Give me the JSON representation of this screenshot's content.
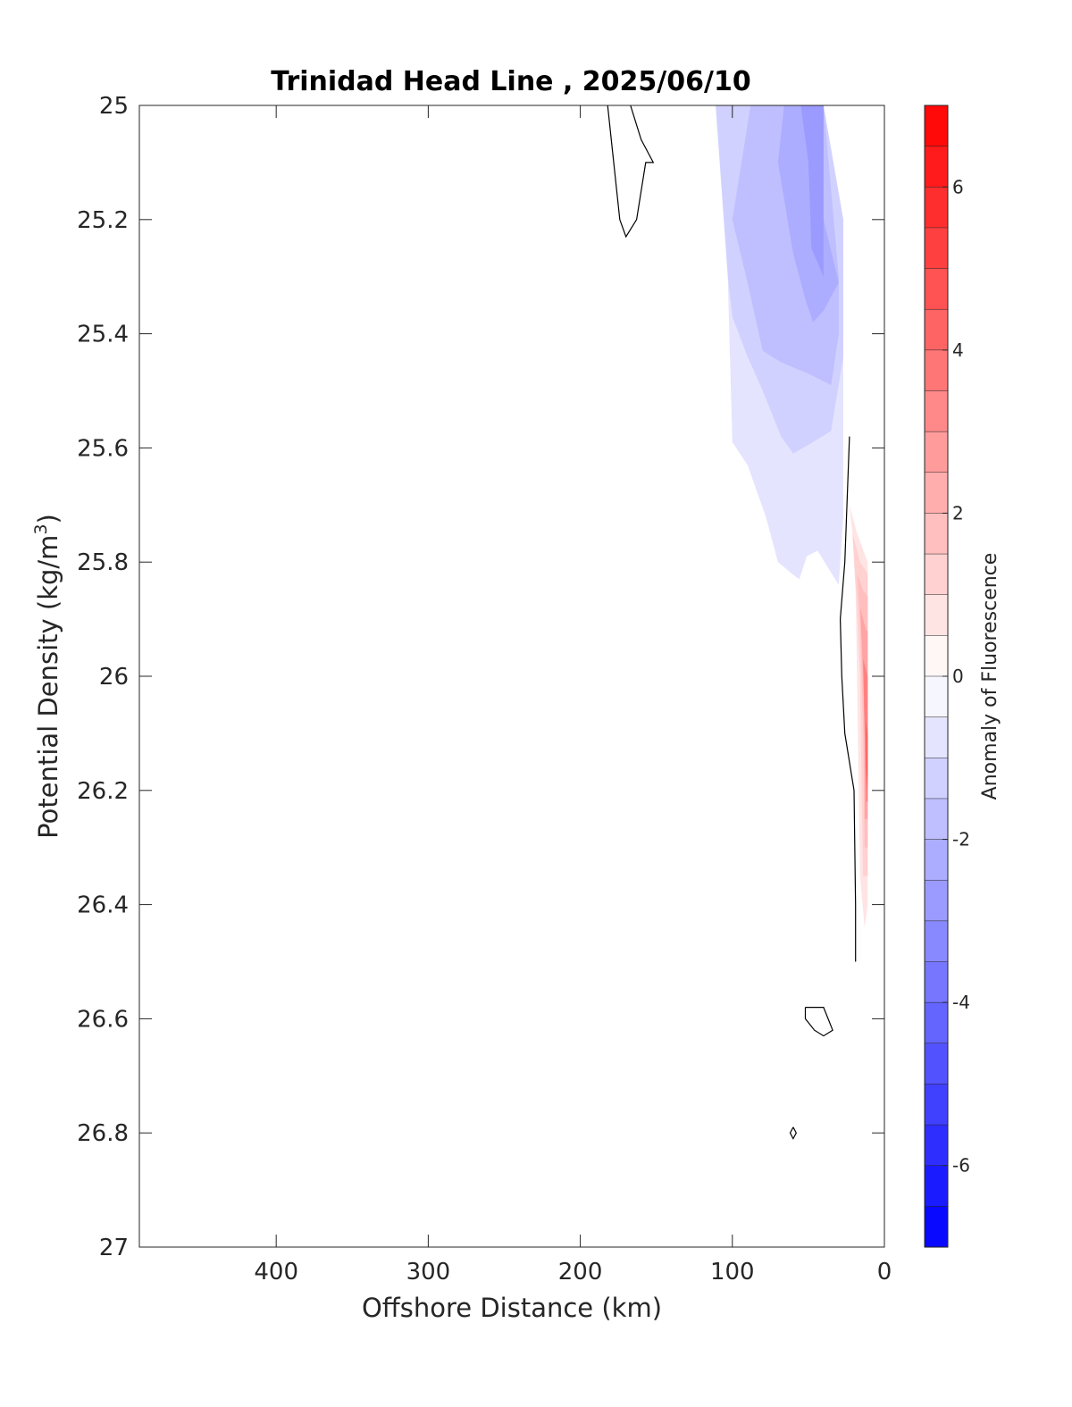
{
  "chart_data": {
    "type": "contour",
    "title": "Trinidad Head Line , 2025/06/10",
    "xlabel": "Offshore Distance (km)",
    "ylabel": "Potential Density (kg/m",
    "ylabel_sup": "3",
    "ylabel_close": ")",
    "xlim": [
      490,
      0
    ],
    "ylim": [
      25,
      27
    ],
    "x_reversed": true,
    "y_reversed": true,
    "xticks": [
      400,
      300,
      200,
      100,
      0
    ],
    "xtick_labels": [
      "400",
      "300",
      "200",
      "100",
      "0"
    ],
    "yticks": [
      25,
      25.2,
      25.4,
      25.6,
      25.8,
      26,
      26.2,
      26.4,
      26.6,
      26.8,
      27
    ],
    "ytick_labels": [
      "25",
      "25.2",
      "25.4",
      "25.6",
      "25.8",
      "26",
      "26.2",
      "26.4",
      "26.6",
      "26.8",
      "27"
    ],
    "grid": false,
    "colorbar": {
      "label": "Anomaly of Fluorescence",
      "range": [
        -7,
        7
      ],
      "levels": 28,
      "ticks": [
        6,
        4,
        2,
        0,
        -2,
        -4,
        -6
      ],
      "tick_labels": [
        "6",
        "4",
        "2",
        "0",
        "-2",
        "-4",
        "-6"
      ],
      "color_low": "#0000ff",
      "color_mid": "#ffffff",
      "color_high": "#ff0000"
    },
    "filled_regions": [
      {
        "level": -0.75,
        "points": [
          [
            128,
            25
          ],
          [
            106,
            25
          ],
          [
            102,
            25.4
          ],
          [
            100,
            25.59
          ],
          [
            90,
            25.63
          ],
          [
            78,
            25.72
          ],
          [
            70,
            25.8
          ],
          [
            61,
            25.82
          ],
          [
            56,
            25.83
          ],
          [
            51,
            25.79
          ],
          [
            44,
            25.78
          ],
          [
            30,
            25.84
          ],
          [
            27,
            25.72
          ],
          [
            27,
            25.25
          ],
          [
            40,
            25
          ],
          [
            128,
            25
          ]
        ]
      },
      {
        "level": -1.25,
        "points": [
          [
            111,
            25
          ],
          [
            103,
            25.3
          ],
          [
            100,
            25.37
          ],
          [
            90,
            25.44
          ],
          [
            80,
            25.5
          ],
          [
            68,
            25.58
          ],
          [
            60,
            25.61
          ],
          [
            47,
            25.59
          ],
          [
            35,
            25.57
          ],
          [
            27,
            25.44
          ],
          [
            27,
            25.2
          ],
          [
            40,
            25
          ],
          [
            111,
            25
          ]
        ]
      },
      {
        "level": -1.75,
        "points": [
          [
            88,
            25
          ],
          [
            100,
            25.2
          ],
          [
            90,
            25.31
          ],
          [
            80,
            25.43
          ],
          [
            68,
            25.45
          ],
          [
            50,
            25.47
          ],
          [
            35,
            25.49
          ],
          [
            30,
            25.4
          ],
          [
            30,
            25.3
          ],
          [
            40,
            25
          ],
          [
            88,
            25
          ]
        ]
      },
      {
        "level": -2.25,
        "points": [
          [
            66,
            25
          ],
          [
            70,
            25.1
          ],
          [
            60,
            25.26
          ],
          [
            52,
            25.34
          ],
          [
            47,
            25.38
          ],
          [
            40,
            25.36
          ],
          [
            30,
            25.31
          ],
          [
            40,
            25.2
          ],
          [
            40,
            25
          ],
          [
            66,
            25
          ]
        ]
      },
      {
        "level": -2.75,
        "points": [
          [
            55,
            25
          ],
          [
            50,
            25.1
          ],
          [
            48,
            25.25
          ],
          [
            40,
            25.3
          ],
          [
            40,
            25
          ],
          [
            55,
            25
          ]
        ]
      },
      {
        "level": 0.75,
        "points": [
          [
            23,
            25.7
          ],
          [
            18,
            25.75
          ],
          [
            11,
            25.8
          ],
          [
            11,
            26.4
          ],
          [
            13,
            26.44
          ],
          [
            16,
            26.35
          ],
          [
            17,
            26.2
          ],
          [
            18,
            26
          ],
          [
            19,
            25.85
          ],
          [
            21,
            25.75
          ],
          [
            23,
            25.7
          ]
        ]
      },
      {
        "level": 1.25,
        "points": [
          [
            21,
            25.75
          ],
          [
            16,
            25.8
          ],
          [
            11,
            25.82
          ],
          [
            11,
            26.35
          ],
          [
            14,
            26.35
          ],
          [
            15,
            26.2
          ],
          [
            16,
            26
          ],
          [
            18,
            25.88
          ],
          [
            21,
            25.75
          ]
        ]
      },
      {
        "level": 1.75,
        "points": [
          [
            18,
            25.82
          ],
          [
            14,
            25.85
          ],
          [
            11,
            25.86
          ],
          [
            11,
            26.3
          ],
          [
            13,
            26.3
          ],
          [
            14,
            26.1
          ],
          [
            15,
            26
          ],
          [
            16,
            25.9
          ],
          [
            18,
            25.82
          ]
        ]
      },
      {
        "level": 2.5,
        "points": [
          [
            16,
            25.88
          ],
          [
            12,
            25.92
          ],
          [
            11,
            25.92
          ],
          [
            11,
            26.25
          ],
          [
            13,
            26.25
          ],
          [
            13,
            26.1
          ],
          [
            14,
            26
          ],
          [
            16,
            25.88
          ]
        ]
      },
      {
        "level": 3.5,
        "points": [
          [
            14,
            25.97
          ],
          [
            11,
            26
          ],
          [
            11,
            26.22
          ],
          [
            12,
            26.22
          ],
          [
            13,
            26.1
          ],
          [
            14,
            25.97
          ]
        ]
      },
      {
        "level": 4.5,
        "points": [
          [
            12,
            26.08
          ],
          [
            11,
            26.1
          ],
          [
            11,
            26.2
          ],
          [
            12,
            26.16
          ],
          [
            12,
            26.08
          ]
        ]
      }
    ],
    "contour_lines": [
      {
        "level": 0,
        "points": [
          [
            182,
            25
          ],
          [
            178,
            25.1
          ],
          [
            174,
            25.2
          ],
          [
            170,
            25.23
          ],
          [
            163,
            25.2
          ],
          [
            157,
            25.1
          ],
          [
            152,
            25.1
          ],
          [
            160,
            25.06
          ],
          [
            167,
            25
          ]
        ]
      },
      {
        "level": 0,
        "points": [
          [
            23,
            25.58
          ],
          [
            26,
            25.8
          ],
          [
            29,
            25.9
          ],
          [
            28,
            26
          ],
          [
            26,
            26.1
          ],
          [
            20,
            26.2
          ],
          [
            19,
            26.4
          ],
          [
            19,
            26.5
          ]
        ]
      },
      {
        "level": 0,
        "points": [
          [
            52,
            26.58
          ],
          [
            40,
            26.58
          ],
          [
            34,
            26.62
          ],
          [
            40,
            26.63
          ],
          [
            46,
            26.62
          ],
          [
            52,
            26.6
          ],
          [
            52,
            26.58
          ]
        ]
      },
      {
        "level": 0,
        "points": [
          [
            60,
            26.79
          ],
          [
            58,
            26.8
          ],
          [
            60,
            26.81
          ],
          [
            62,
            26.8
          ],
          [
            60,
            26.79
          ]
        ]
      }
    ]
  }
}
